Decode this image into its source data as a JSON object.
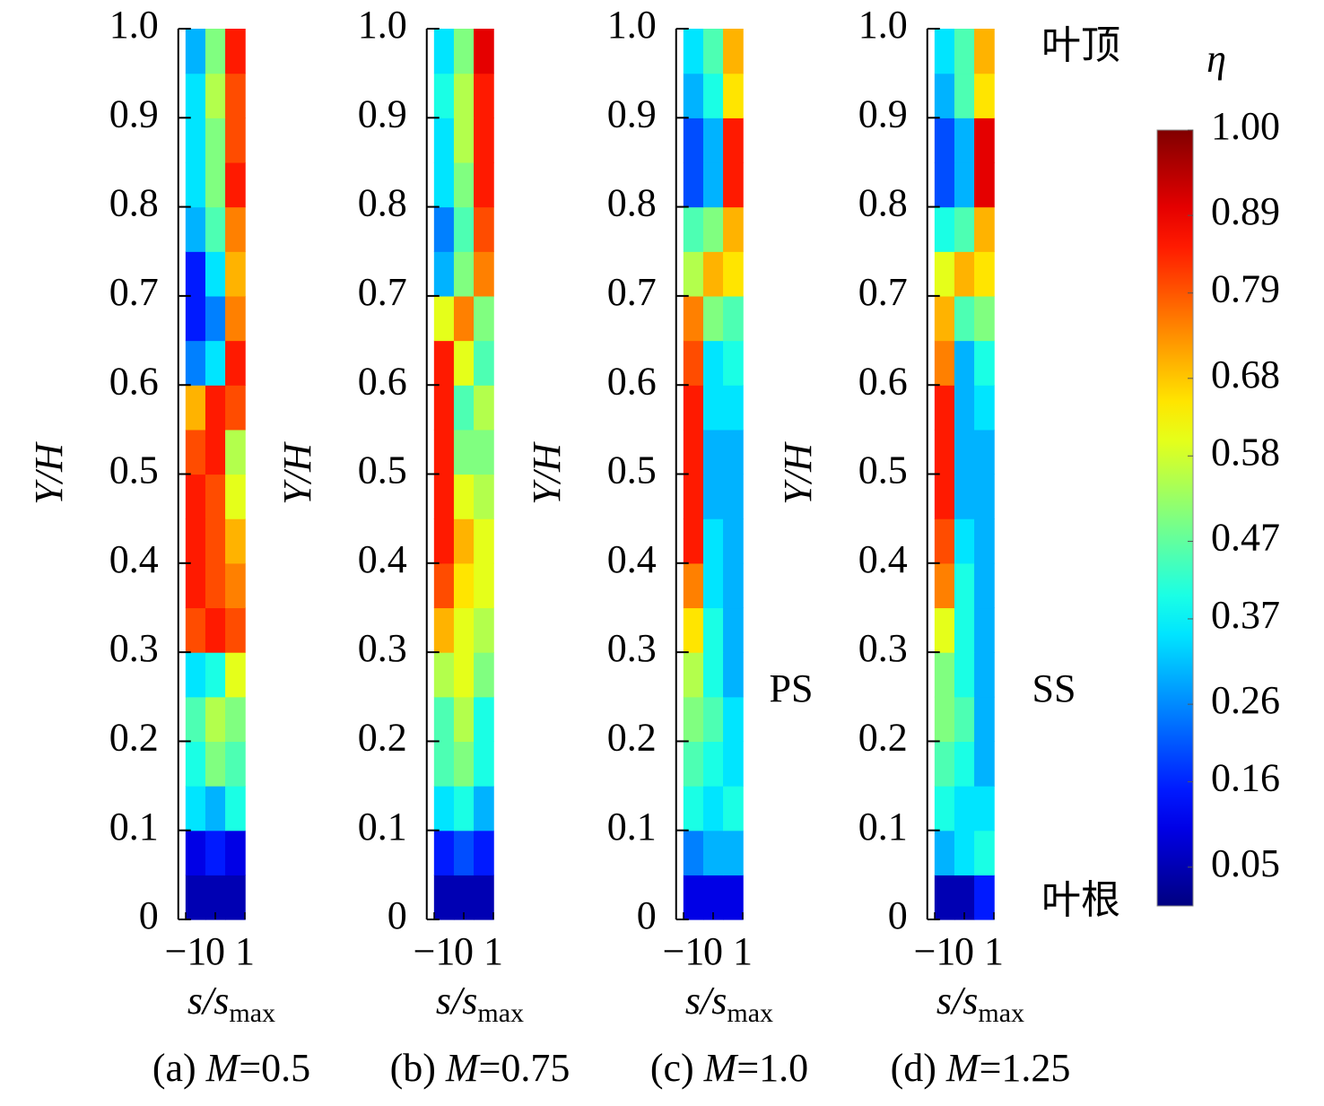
{
  "chart_data": [
    {
      "type": "heatmap",
      "caption_tag": "(a)",
      "caption_var": "M",
      "caption_value": "=0.5",
      "x_label": "s/s",
      "x_label_sub": "max",
      "y_label": "Y/H",
      "xlim": [
        -1.25,
        1.25
      ],
      "xticks": [
        {
          "value": -1,
          "label": "−1"
        },
        0,
        1
      ],
      "ylim": [
        0,
        1
      ],
      "yticks": [
        0,
        0.1,
        0.2,
        0.3,
        0.4,
        0.5,
        0.6,
        0.7,
        0.8,
        0.9,
        {
          "value": 1,
          "label": "1.0"
        }
      ],
      "x": [
        -0.67,
        0,
        0.67
      ],
      "z": [
        [
          0.05,
          0.05,
          0.05
        ],
        [
          0.1,
          0.15,
          0.1
        ],
        [
          0.35,
          0.3,
          0.4
        ],
        [
          0.4,
          0.5,
          0.45
        ],
        [
          0.45,
          0.55,
          0.5
        ],
        [
          0.35,
          0.4,
          0.6
        ],
        [
          0.8,
          0.85,
          0.8
        ],
        [
          0.85,
          0.8,
          0.75
        ],
        [
          0.85,
          0.8,
          0.7
        ],
        [
          0.85,
          0.8,
          0.6
        ],
        [
          0.8,
          0.85,
          0.55
        ],
        [
          0.7,
          0.85,
          0.8
        ],
        [
          0.25,
          0.35,
          0.85
        ],
        [
          0.15,
          0.25,
          0.75
        ],
        [
          0.15,
          0.35,
          0.7
        ],
        [
          0.3,
          0.45,
          0.75
        ],
        [
          0.35,
          0.5,
          0.85
        ],
        [
          0.35,
          0.5,
          0.8
        ],
        [
          0.35,
          0.55,
          0.8
        ],
        [
          0.3,
          0.5,
          0.85
        ]
      ]
    },
    {
      "type": "heatmap",
      "caption_tag": "(b)",
      "caption_var": "M",
      "caption_value": "=0.75",
      "x_label": "s/s",
      "x_label_sub": "max",
      "y_label": "Y/H",
      "xlim": [
        -1.25,
        1.25
      ],
      "xticks": [
        {
          "value": -1,
          "label": "−1"
        },
        0,
        1
      ],
      "ylim": [
        0,
        1
      ],
      "yticks": [
        0,
        0.1,
        0.2,
        0.3,
        0.4,
        0.5,
        0.6,
        0.7,
        0.8,
        0.9,
        {
          "value": 1,
          "label": "1.0"
        }
      ],
      "x": [
        -0.67,
        0,
        0.67
      ],
      "z": [
        [
          0.05,
          0.05,
          0.05
        ],
        [
          0.15,
          0.2,
          0.15
        ],
        [
          0.35,
          0.4,
          0.3
        ],
        [
          0.45,
          0.5,
          0.4
        ],
        [
          0.45,
          0.55,
          0.4
        ],
        [
          0.55,
          0.6,
          0.5
        ],
        [
          0.7,
          0.6,
          0.55
        ],
        [
          0.8,
          0.65,
          0.6
        ],
        [
          0.85,
          0.7,
          0.6
        ],
        [
          0.85,
          0.6,
          0.55
        ],
        [
          0.85,
          0.5,
          0.5
        ],
        [
          0.85,
          0.45,
          0.55
        ],
        [
          0.85,
          0.6,
          0.45
        ],
        [
          0.6,
          0.75,
          0.5
        ],
        [
          0.3,
          0.5,
          0.75
        ],
        [
          0.25,
          0.45,
          0.8
        ],
        [
          0.35,
          0.5,
          0.85
        ],
        [
          0.35,
          0.55,
          0.85
        ],
        [
          0.4,
          0.55,
          0.85
        ],
        [
          0.35,
          0.5,
          0.9
        ]
      ]
    },
    {
      "type": "heatmap",
      "caption_tag": "(c)",
      "caption_var": "M",
      "caption_value": "=1.0",
      "x_label": "s/s",
      "x_label_sub": "max",
      "y_label": "Y/H",
      "xlim": [
        -1.25,
        1.25
      ],
      "xticks": [
        {
          "value": -1,
          "label": "−1"
        },
        0,
        1
      ],
      "ylim": [
        0,
        1
      ],
      "yticks": [
        0,
        0.1,
        0.2,
        0.3,
        0.4,
        0.5,
        0.6,
        0.7,
        0.8,
        0.9,
        {
          "value": 1,
          "label": "1.0"
        }
      ],
      "x": [
        -0.67,
        0,
        0.67
      ],
      "z": [
        [
          0.1,
          0.1,
          0.1
        ],
        [
          0.25,
          0.3,
          0.3
        ],
        [
          0.4,
          0.35,
          0.4
        ],
        [
          0.45,
          0.4,
          0.35
        ],
        [
          0.5,
          0.45,
          0.35
        ],
        [
          0.55,
          0.4,
          0.3
        ],
        [
          0.65,
          0.4,
          0.3
        ],
        [
          0.75,
          0.35,
          0.3
        ],
        [
          0.85,
          0.35,
          0.3
        ],
        [
          0.85,
          0.3,
          0.3
        ],
        [
          0.85,
          0.3,
          0.3
        ],
        [
          0.85,
          0.35,
          0.35
        ],
        [
          0.8,
          0.35,
          0.4
        ],
        [
          0.75,
          0.5,
          0.45
        ],
        [
          0.55,
          0.7,
          0.65
        ],
        [
          0.45,
          0.5,
          0.7
        ],
        [
          0.2,
          0.3,
          0.85
        ],
        [
          0.2,
          0.3,
          0.85
        ],
        [
          0.3,
          0.4,
          0.65
        ],
        [
          0.35,
          0.45,
          0.7
        ]
      ]
    },
    {
      "type": "heatmap",
      "caption_tag": "(d)",
      "caption_var": "M",
      "caption_value": "=1.25",
      "x_label": "s/s",
      "x_label_sub": "max",
      "y_label": "Y/H",
      "xlim": [
        -1.25,
        1.25
      ],
      "xticks": [
        {
          "value": -1,
          "label": "−1"
        },
        0,
        1
      ],
      "ylim": [
        0,
        1
      ],
      "yticks": [
        0,
        0.1,
        0.2,
        0.3,
        0.4,
        0.5,
        0.6,
        0.7,
        0.8,
        0.9,
        {
          "value": 1,
          "label": "1.0"
        }
      ],
      "x": [
        -0.67,
        0,
        0.67
      ],
      "z": [
        [
          0.05,
          0.05,
          0.15
        ],
        [
          0.3,
          0.35,
          0.4
        ],
        [
          0.4,
          0.35,
          0.35
        ],
        [
          0.45,
          0.4,
          0.3
        ],
        [
          0.5,
          0.45,
          0.3
        ],
        [
          0.5,
          0.4,
          0.3
        ],
        [
          0.6,
          0.4,
          0.3
        ],
        [
          0.75,
          0.4,
          0.3
        ],
        [
          0.8,
          0.35,
          0.3
        ],
        [
          0.85,
          0.3,
          0.3
        ],
        [
          0.85,
          0.3,
          0.3
        ],
        [
          0.85,
          0.3,
          0.35
        ],
        [
          0.75,
          0.3,
          0.4
        ],
        [
          0.7,
          0.45,
          0.5
        ],
        [
          0.6,
          0.7,
          0.65
        ],
        [
          0.4,
          0.45,
          0.7
        ],
        [
          0.2,
          0.3,
          0.9
        ],
        [
          0.2,
          0.3,
          0.9
        ],
        [
          0.3,
          0.45,
          0.65
        ],
        [
          0.35,
          0.45,
          0.7
        ]
      ]
    }
  ],
  "colorbar": {
    "title": "η",
    "zlim": [
      0,
      1
    ],
    "ticks": [
      {
        "value": 1,
        "label": "1.00"
      },
      0.89,
      0.79,
      0.68,
      0.58,
      0.47,
      0.37,
      0.26,
      0.16,
      0.05
    ]
  },
  "annotations": {
    "tip": "叶顶",
    "ps": "PS",
    "ss": "SS",
    "root": "叶根"
  }
}
